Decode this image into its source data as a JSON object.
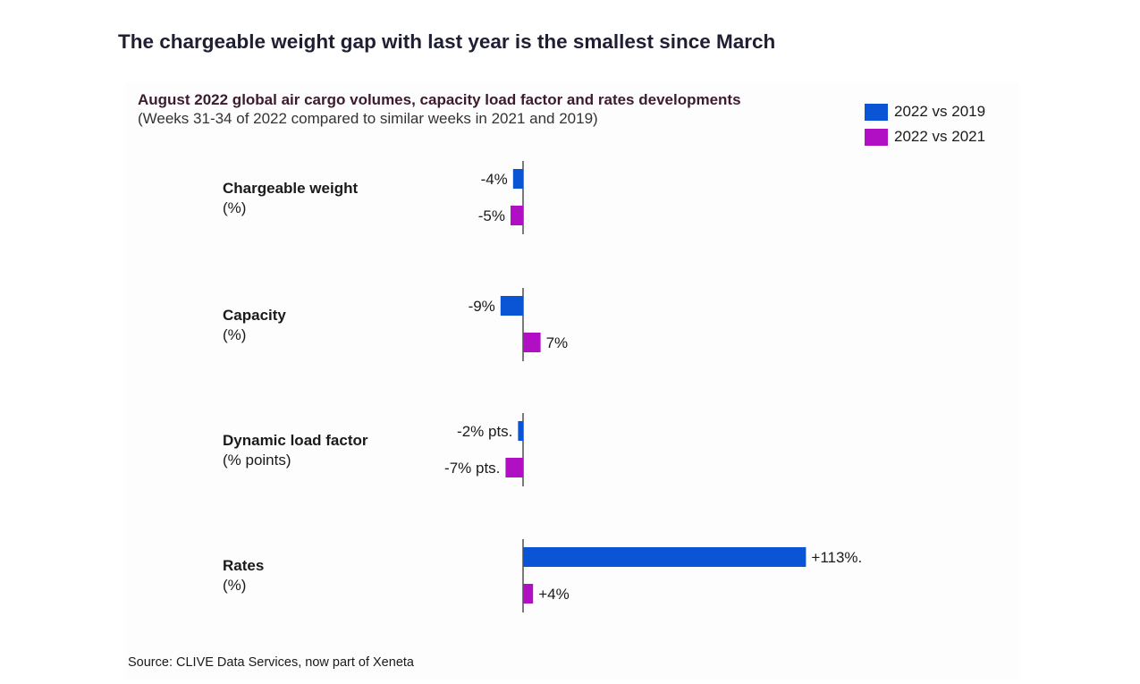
{
  "title": "The chargeable weight gap with last year is the smallest since March",
  "chart_data": {
    "type": "bar",
    "orientation": "horizontal",
    "title": "August 2022 global air cargo volumes, capacity load factor and rates developments",
    "subtitle": "(Weeks 31-34 of 2022 compared to similar weeks in 2021 and 2019)",
    "legend_position": "top-right",
    "grid": false,
    "categories": [
      {
        "name": "Chargeable weight",
        "unit": "(%)"
      },
      {
        "name": "Capacity",
        "unit": "(%)"
      },
      {
        "name": "Dynamic load factor",
        "unit": "(% points)"
      },
      {
        "name": "Rates",
        "unit": "(%)"
      }
    ],
    "series": [
      {
        "name": "2022 vs 2019",
        "color": "#0a55d6",
        "values": [
          -4,
          -9,
          -2,
          113
        ],
        "labels": [
          "-4%",
          "-9%",
          "-2% pts.",
          "+113%."
        ]
      },
      {
        "name": "2022 vs 2021",
        "color": "#b00fc4",
        "values": [
          -5,
          7,
          -7,
          4
        ],
        "labels": [
          "-5%",
          "7%",
          "-7% pts.",
          "+4%"
        ]
      }
    ]
  },
  "source": "Source: CLIVE Data Services, now part of Xeneta"
}
